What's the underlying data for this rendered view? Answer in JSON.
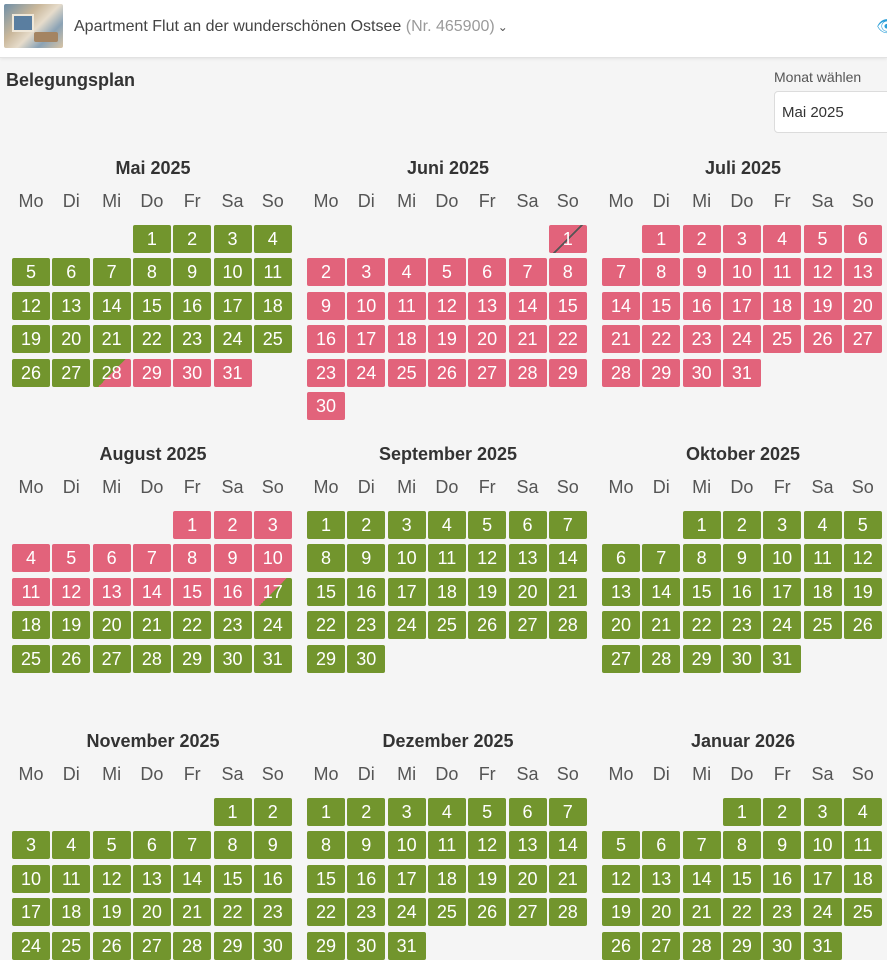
{
  "header": {
    "title": "Apartment Flut an der wunderschönen Ostsee",
    "number": "(Nr. 465900)",
    "chevron_icon": "chevron-down-icon",
    "eye_icon": "eye-icon"
  },
  "page": {
    "heading": "Belegungsplan",
    "month_select_label": "Monat wählen",
    "month_select_value": "Mai 2025"
  },
  "colors": {
    "free": "#72952d",
    "booked": "#e2637b"
  },
  "weekdays": [
    "Mo",
    "Di",
    "Mi",
    "Do",
    "Fr",
    "Sa",
    "So"
  ],
  "months": [
    {
      "title": "Mai 2025",
      "start": 3,
      "days": 31,
      "booked": [
        29,
        30,
        31
      ],
      "arrival": [
        28
      ],
      "departure": []
    },
    {
      "title": "Juni 2025",
      "start": 6,
      "days": 30,
      "booked": [
        2,
        3,
        4,
        5,
        6,
        7,
        8,
        9,
        10,
        11,
        12,
        13,
        14,
        15,
        16,
        17,
        18,
        19,
        20,
        21,
        22,
        23,
        24,
        25,
        26,
        27,
        28,
        29,
        30
      ],
      "arrival": [],
      "departure": [],
      "crossed": [
        1
      ]
    },
    {
      "title": "Juli 2025",
      "start": 1,
      "days": 31,
      "booked": [
        1,
        2,
        3,
        4,
        5,
        6,
        7,
        8,
        9,
        10,
        11,
        12,
        13,
        14,
        15,
        16,
        17,
        18,
        19,
        20,
        21,
        22,
        23,
        24,
        25,
        26,
        27,
        28,
        29,
        30,
        31
      ],
      "arrival": [],
      "departure": []
    },
    {
      "title": "August 2025",
      "start": 4,
      "days": 31,
      "booked": [
        1,
        2,
        3,
        4,
        5,
        6,
        7,
        8,
        9,
        10,
        11,
        12,
        13,
        14,
        15,
        16
      ],
      "arrival": [],
      "departure": [
        17
      ]
    },
    {
      "title": "September 2025",
      "start": 0,
      "days": 30,
      "booked": [],
      "arrival": [],
      "departure": []
    },
    {
      "title": "Oktober 2025",
      "start": 2,
      "days": 31,
      "booked": [],
      "arrival": [],
      "departure": []
    },
    {
      "title": "November 2025",
      "start": 5,
      "days": 30,
      "booked": [],
      "arrival": [],
      "departure": []
    },
    {
      "title": "Dezember 2025",
      "start": 0,
      "days": 31,
      "booked": [],
      "arrival": [],
      "departure": []
    },
    {
      "title": "Januar 2026",
      "start": 3,
      "days": 31,
      "booked": [],
      "arrival": [],
      "departure": []
    }
  ]
}
